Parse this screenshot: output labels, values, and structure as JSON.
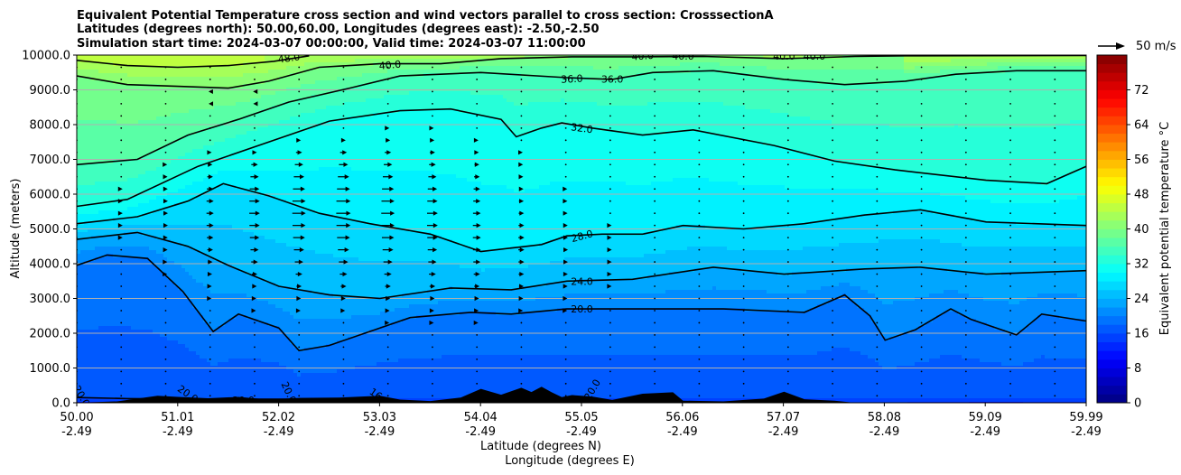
{
  "chart_data": {
    "type": "filled-contour cross-section with wind vectors",
    "title_lines": [
      "Equivalent Potential Temperature cross section and wind vectors parallel to cross section: CrosssectionA",
      "Latitudes (degrees north): 50.00,60.00, Longitudes (degrees east): -2.50,-2.50",
      "Simulation start time: 2024-03-07 00:00:00, Valid time: 2024-03-07 11:00:00"
    ],
    "ylabel": "Altitude (meters)",
    "xlabel_1": "Latitude (degrees N)",
    "xlabel_2": "Longitude (degrees E)",
    "y_ticks": [
      "0.0",
      "1000.0",
      "2000.0",
      "3000.0",
      "4000.0",
      "5000.0",
      "6000.0",
      "7000.0",
      "8000.0",
      "9000.0",
      "10000.0"
    ],
    "x_ticks": [
      {
        "lat": "50.00",
        "lon": "-2.49"
      },
      {
        "lat": "51.01",
        "lon": "-2.49"
      },
      {
        "lat": "52.02",
        "lon": "-2.49"
      },
      {
        "lat": "53.03",
        "lon": "-2.49"
      },
      {
        "lat": "54.04",
        "lon": "-2.49"
      },
      {
        "lat": "55.05",
        "lon": "-2.49"
      },
      {
        "lat": "56.06",
        "lon": "-2.49"
      },
      {
        "lat": "57.07",
        "lon": "-2.49"
      },
      {
        "lat": "58.08",
        "lon": "-2.49"
      },
      {
        "lat": "59.09",
        "lon": "-2.49"
      },
      {
        "lat": "59.99",
        "lon": "-2.49"
      }
    ],
    "xlim": [
      50.0,
      59.99
    ],
    "ylim": [
      0,
      10000
    ],
    "grid": "horizontal",
    "colorbar": {
      "label": "Equivalent potential temperature °C",
      "range": [
        0,
        80
      ],
      "step": 2,
      "ticks": [
        "0",
        "8",
        "16",
        "24",
        "32",
        "40",
        "48",
        "56",
        "64",
        "72"
      ],
      "colormap": "jet"
    },
    "quiver_key": "50 m/s",
    "contours": [
      {
        "value": 16,
        "label": "16.0",
        "points": [
          [
            50.0,
            150
          ],
          [
            50.5,
            120
          ],
          [
            51.0,
            110
          ],
          [
            51.5,
            100
          ],
          [
            52.0,
            100
          ],
          [
            52.5,
            110
          ],
          [
            53.0,
            120
          ]
        ]
      },
      {
        "value": 20,
        "label": "20.0",
        "points": [
          [
            50.0,
            3950
          ],
          [
            50.3,
            4250
          ],
          [
            50.7,
            4150
          ],
          [
            51.05,
            3200
          ],
          [
            51.35,
            2050
          ],
          [
            51.6,
            2550
          ],
          [
            52.0,
            2150
          ],
          [
            52.2,
            1500
          ],
          [
            52.5,
            1650
          ],
          [
            52.9,
            2050
          ],
          [
            53.3,
            2450
          ],
          [
            53.9,
            2600
          ],
          [
            54.3,
            2550
          ],
          [
            54.85,
            2700
          ],
          [
            55.5,
            2700
          ],
          [
            56.4,
            2700
          ],
          [
            57.2,
            2600
          ],
          [
            57.6,
            3100
          ],
          [
            57.85,
            2500
          ],
          [
            58.0,
            1800
          ],
          [
            58.3,
            2100
          ],
          [
            58.65,
            2700
          ],
          [
            58.85,
            2400
          ],
          [
            59.3,
            1950
          ],
          [
            59.55,
            2550
          ],
          [
            59.99,
            2350
          ]
        ]
      },
      {
        "value": 24,
        "label": "24.0",
        "points": [
          [
            50.0,
            4700
          ],
          [
            50.6,
            4900
          ],
          [
            51.1,
            4500
          ],
          [
            51.5,
            3950
          ],
          [
            52.0,
            3350
          ],
          [
            52.5,
            3100
          ],
          [
            53.0,
            3000
          ],
          [
            53.7,
            3300
          ],
          [
            54.3,
            3250
          ],
          [
            54.85,
            3500
          ],
          [
            55.5,
            3550
          ],
          [
            56.3,
            3900
          ],
          [
            57.0,
            3700
          ],
          [
            57.8,
            3850
          ],
          [
            58.35,
            3900
          ],
          [
            59.0,
            3700
          ],
          [
            59.99,
            3800
          ]
        ]
      },
      {
        "value": 28,
        "label": "28.0",
        "points": [
          [
            50.0,
            5150
          ],
          [
            50.6,
            5350
          ],
          [
            51.1,
            5800
          ],
          [
            51.45,
            6300
          ],
          [
            51.9,
            5950
          ],
          [
            52.4,
            5450
          ],
          [
            52.9,
            5150
          ],
          [
            53.5,
            4850
          ],
          [
            54.0,
            4350
          ],
          [
            54.6,
            4550
          ],
          [
            54.85,
            4800
          ],
          [
            55.2,
            4850
          ],
          [
            55.6,
            4850
          ],
          [
            56.0,
            5100
          ],
          [
            56.6,
            5000
          ],
          [
            57.2,
            5150
          ],
          [
            57.8,
            5400
          ],
          [
            58.35,
            5550
          ],
          [
            59.0,
            5200
          ],
          [
            59.99,
            5100
          ]
        ]
      },
      {
        "value": 32,
        "label": "32.0",
        "points": [
          [
            50.0,
            5650
          ],
          [
            50.5,
            5850
          ],
          [
            51.2,
            6800
          ],
          [
            51.9,
            7500
          ],
          [
            52.5,
            8100
          ],
          [
            53.2,
            8400
          ],
          [
            53.7,
            8450
          ],
          [
            54.2,
            8150
          ],
          [
            54.35,
            7650
          ],
          [
            54.6,
            7900
          ],
          [
            54.8,
            8050
          ],
          [
            55.1,
            7900
          ],
          [
            55.6,
            7700
          ],
          [
            56.1,
            7850
          ],
          [
            56.9,
            7400
          ],
          [
            57.5,
            6950
          ],
          [
            58.1,
            6700
          ],
          [
            59.0,
            6400
          ],
          [
            59.6,
            6300
          ],
          [
            59.99,
            6800
          ]
        ]
      },
      {
        "value": 36,
        "label": "36.0",
        "points": [
          [
            50.0,
            6850
          ],
          [
            50.6,
            7000
          ],
          [
            51.1,
            7700
          ],
          [
            51.6,
            8150
          ],
          [
            52.1,
            8650
          ],
          [
            52.7,
            9050
          ],
          [
            53.2,
            9400
          ],
          [
            54.0,
            9500
          ],
          [
            54.85,
            9350
          ],
          [
            55.3,
            9300
          ],
          [
            55.7,
            9500
          ],
          [
            56.3,
            9550
          ],
          [
            57.0,
            9300
          ],
          [
            57.6,
            9150
          ],
          [
            58.2,
            9250
          ],
          [
            58.7,
            9450
          ],
          [
            59.3,
            9550
          ],
          [
            59.99,
            9550
          ]
        ]
      },
      {
        "value": 40,
        "label": "40.0",
        "points": [
          [
            50.0,
            9400
          ],
          [
            50.5,
            9150
          ],
          [
            51.0,
            9100
          ],
          [
            51.5,
            9050
          ],
          [
            51.9,
            9250
          ],
          [
            52.4,
            9650
          ],
          [
            53.0,
            9750
          ],
          [
            53.6,
            9750
          ],
          [
            54.2,
            9900
          ],
          [
            54.9,
            9950
          ],
          [
            55.5,
            9950
          ],
          [
            56.2,
            9960
          ],
          [
            57.0,
            9900
          ],
          [
            57.7,
            9960
          ],
          [
            58.2,
            9980
          ],
          [
            59.99,
            9990
          ]
        ]
      },
      {
        "value": 44,
        "label": "44.0",
        "points": [
          [
            50.0,
            9850
          ],
          [
            50.5,
            9700
          ],
          [
            51.0,
            9650
          ],
          [
            51.5,
            9700
          ],
          [
            51.95,
            9820
          ],
          [
            52.3,
            9980
          ]
        ]
      }
    ],
    "contour_labels": [
      {
        "label": "48.0",
        "lat": 52.1,
        "alt": 9920,
        "angle": -8
      },
      {
        "label": "40.0",
        "lat": 53.1,
        "alt": 9720,
        "angle": -5
      },
      {
        "label": "36.0",
        "lat": 54.9,
        "alt": 9320,
        "angle": -3
      },
      {
        "label": "36.0",
        "lat": 55.3,
        "alt": 9310,
        "angle": 0
      },
      {
        "label": "40.0",
        "lat": 55.6,
        "alt": 9980,
        "angle": -4
      },
      {
        "label": "40.0",
        "lat": 56.0,
        "alt": 9980,
        "angle": 0
      },
      {
        "label": "40.0",
        "lat": 57.0,
        "alt": 9980,
        "angle": 0
      },
      {
        "label": "40.0",
        "lat": 57.3,
        "alt": 9980,
        "angle": 0
      },
      {
        "label": "32.0",
        "lat": 55.0,
        "alt": 7900,
        "angle": 8
      },
      {
        "label": "28.0",
        "lat": 55.0,
        "alt": 4800,
        "angle": -15
      },
      {
        "label": "24.0",
        "lat": 55.0,
        "alt": 3500,
        "angle": 0
      },
      {
        "label": "20.0",
        "lat": 55.0,
        "alt": 2700,
        "angle": 0
      },
      {
        "label": "20.0",
        "lat": 50.05,
        "alt": 200,
        "angle": 60
      },
      {
        "label": "20.0",
        "lat": 51.1,
        "alt": 260,
        "angle": 35
      },
      {
        "label": "20.0",
        "lat": 51.65,
        "alt": 80,
        "angle": 0
      },
      {
        "label": "20.0",
        "lat": 52.1,
        "alt": 300,
        "angle": 65
      },
      {
        "label": "16.0",
        "lat": 53.0,
        "alt": 180,
        "angle": 35
      },
      {
        "label": "20.0",
        "lat": 55.1,
        "alt": 380,
        "angle": -60
      }
    ],
    "terrain": [
      [
        50.0,
        0
      ],
      [
        50.4,
        40
      ],
      [
        50.6,
        120
      ],
      [
        50.8,
        200
      ],
      [
        51.0,
        170
      ],
      [
        51.3,
        130
      ],
      [
        51.6,
        170
      ],
      [
        51.9,
        90
      ],
      [
        52.2,
        140
      ],
      [
        52.6,
        150
      ],
      [
        53.0,
        200
      ],
      [
        53.2,
        90
      ],
      [
        53.5,
        50
      ],
      [
        53.8,
        150
      ],
      [
        54.0,
        400
      ],
      [
        54.2,
        230
      ],
      [
        54.3,
        330
      ],
      [
        54.4,
        430
      ],
      [
        54.5,
        310
      ],
      [
        54.6,
        460
      ],
      [
        54.7,
        300
      ],
      [
        54.8,
        160
      ],
      [
        54.9,
        220
      ],
      [
        55.1,
        180
      ],
      [
        55.3,
        80
      ],
      [
        55.6,
        260
      ],
      [
        55.9,
        300
      ],
      [
        56.0,
        60
      ],
      [
        56.4,
        40
      ],
      [
        56.8,
        120
      ],
      [
        57.0,
        320
      ],
      [
        57.2,
        100
      ],
      [
        57.5,
        60
      ],
      [
        57.7,
        0
      ]
    ],
    "wind_vectors": {
      "description": "southerly component parallel to cross section; strongest 4000-7000 m near 51.5-53.5 N",
      "lat_step": 0.44,
      "alt_step": 350
    }
  }
}
